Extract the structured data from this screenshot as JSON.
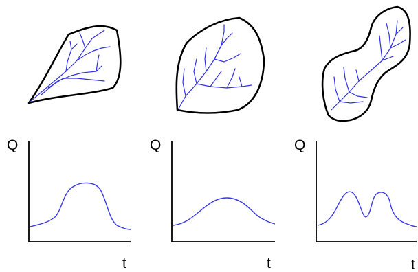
{
  "panels": [
    {
      "shape": "elongated-basin",
      "y_label": "Q",
      "x_label": "t"
    },
    {
      "shape": "rounded-basin",
      "y_label": "Q",
      "x_label": "t"
    },
    {
      "shape": "double-lobed-basin",
      "y_label": "Q",
      "x_label": "t"
    }
  ],
  "colors": {
    "outline": "#000000",
    "river": "#3030e8",
    "hydrograph": "#3a3ae0"
  }
}
